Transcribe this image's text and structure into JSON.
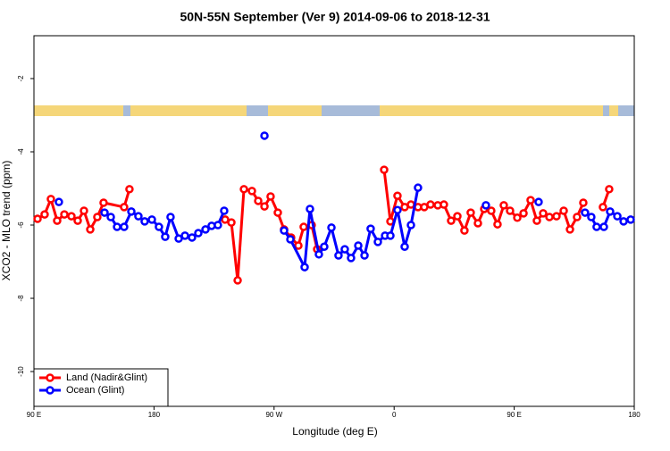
{
  "chart_data": {
    "type": "line",
    "title": "50N-55N September (Ver 9)   2014-09-06 to 2018-12-31",
    "x_label": "Longitude (deg E)",
    "y_label": "XCO2 - MLO trend (ppm)",
    "xlim": [
      90,
      540
    ],
    "ylim": [
      -10.95,
      -0.83
    ],
    "xticks": [
      {
        "value": 90,
        "label": "90 E"
      },
      {
        "value": 180,
        "label": "180"
      },
      {
        "value": 270,
        "label": "90 W"
      },
      {
        "value": 360,
        "label": "0"
      },
      {
        "value": 450,
        "label": "90 E"
      },
      {
        "value": 540,
        "label": "180"
      }
    ],
    "yticks": [
      -10,
      -8,
      -6,
      -4,
      -2
    ],
    "legend": "bottom-left",
    "series": [
      {
        "name": "Land (Nadir&Glint)",
        "color": "#ff0000",
        "x": [
          92.7,
          98.0,
          102.7,
          107.4,
          112.8,
          118.1,
          122.8,
          127.5,
          132.2,
          137.5,
          142.2,
          157.6,
          161.6,
          null,
          233.3,
          238.0,
          242.7,
          247.4,
          253.4,
          258.1,
          262.8,
          267.4,
          272.8,
          277.5,
          282.8,
          288.2,
          292.2,
          298.2,
          302.3,
          null,
          352.5,
          357.2,
          362.5,
          367.9,
          372.6,
          377.9,
          382.6,
          387.3,
          392.7,
          397.3,
          402.7,
          407.4,
          412.7,
          417.4,
          422.8,
          427.5,
          432.8,
          437.5,
          442.2,
          446.9,
          452.3,
          457.0,
          462.3,
          467.0,
          471.7,
          476.4,
          481.7,
          487.1,
          491.8,
          497.1,
          501.8,
          null,
          516.5,
          521.2
        ],
        "values": [
          -5.83,
          -5.71,
          -5.29,
          -5.88,
          -5.71,
          -5.76,
          -5.88,
          -5.61,
          -6.12,
          -5.78,
          -5.39,
          -5.51,
          -5.02,
          null,
          -5.85,
          -5.93,
          -7.51,
          -5.02,
          -5.07,
          -5.34,
          -5.49,
          -5.22,
          -5.66,
          -6.12,
          -6.34,
          -6.56,
          -6.05,
          -6.0,
          -6.66,
          null,
          -4.49,
          -5.9,
          -5.2,
          -5.51,
          -5.44,
          -5.51,
          -5.51,
          -5.44,
          -5.46,
          -5.44,
          -5.88,
          -5.76,
          -6.15,
          -5.66,
          -5.95,
          -5.56,
          -5.61,
          -5.98,
          -5.46,
          -5.61,
          -5.8,
          -5.68,
          -5.32,
          -5.88,
          -5.68,
          -5.78,
          -5.76,
          -5.61,
          -6.12,
          -5.78,
          -5.39,
          null,
          -5.51,
          -5.02
        ]
      },
      {
        "name": "Ocean (Glint)",
        "color": "#0000ff",
        "x": [
          108.7,
          null,
          142.9,
          147.6,
          152.3,
          157.6,
          163.0,
          168.3,
          173.0,
          178.4,
          183.7,
          188.4,
          192.4,
          198.5,
          203.2,
          208.5,
          213.2,
          218.6,
          223.2,
          227.9,
          232.6,
          null,
          262.8,
          null,
          277.5,
          282.2,
          292.9,
          296.9,
          303.6,
          307.6,
          313.0,
          318.3,
          323.0,
          327.7,
          333.1,
          337.8,
          342.4,
          347.8,
          353.2,
          357.2,
          362.5,
          367.9,
          372.6,
          377.9,
          null,
          428.8,
          null,
          468.3,
          null,
          503.1,
          507.8,
          511.8,
          517.2,
          521.9,
          527.3,
          532.0,
          537.3
        ],
        "values": [
          -5.37,
          null,
          -5.66,
          -5.78,
          -6.05,
          -6.05,
          -5.63,
          -5.76,
          -5.9,
          -5.85,
          -6.05,
          -6.32,
          -5.78,
          -6.37,
          -6.29,
          -6.34,
          -6.22,
          -6.12,
          -6.02,
          -6.0,
          -5.61,
          null,
          -3.56,
          null,
          -6.15,
          -6.39,
          -7.15,
          -5.56,
          -6.8,
          -6.59,
          -6.07,
          -6.83,
          -6.66,
          -6.9,
          -6.56,
          -6.83,
          -6.1,
          -6.46,
          -6.29,
          -6.29,
          -5.59,
          -6.59,
          -6.0,
          -4.98,
          null,
          -5.46,
          null,
          -5.37,
          null,
          -5.66,
          -5.78,
          -6.05,
          -6.05,
          -5.63,
          -5.76,
          -5.9,
          -5.85
        ]
      }
    ]
  }
}
